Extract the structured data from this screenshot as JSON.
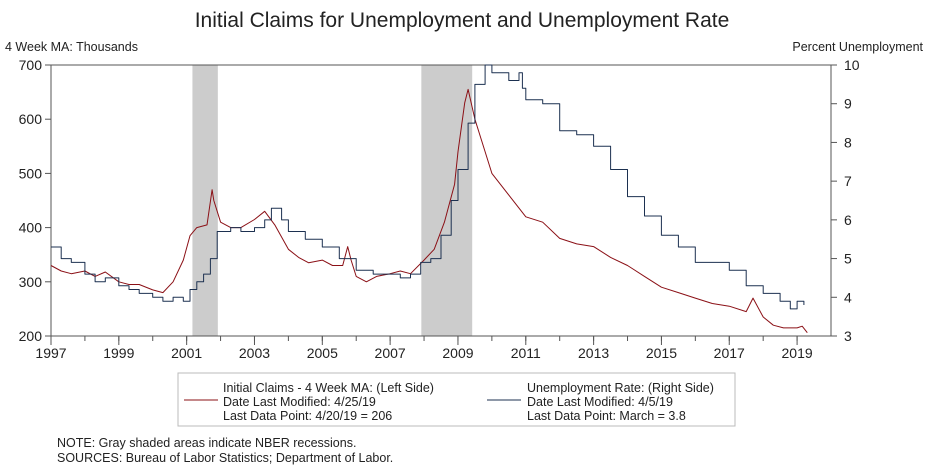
{
  "chart_data": {
    "type": "line",
    "title": "Initial Claims for Unemployment and Unemployment Rate",
    "left_axis_label": "4 Week MA: Thousands",
    "right_axis_label": "Percent Unemployment",
    "x_range": [
      1997.0,
      2020.0
    ],
    "left_ylim": [
      200,
      700
    ],
    "right_ylim": [
      3,
      10
    ],
    "x_ticks": [
      "1997",
      "1999",
      "2001",
      "2003",
      "2005",
      "2007",
      "2009",
      "2011",
      "2013",
      "2015",
      "2017",
      "2019"
    ],
    "left_ticks": [
      "200",
      "300",
      "400",
      "500",
      "600",
      "700"
    ],
    "right_ticks": [
      "3",
      "4",
      "5",
      "6",
      "7",
      "8",
      "9",
      "10"
    ],
    "recessions": [
      [
        2001.17,
        2001.92
      ],
      [
        2007.92,
        2009.42
      ]
    ],
    "series": [
      {
        "name": "Initial Claims - 4 Week MA: (Left Side)",
        "axis": "left",
        "color": "#8b1016",
        "x": [
          1997.0,
          1997.3,
          1997.6,
          1998.0,
          1998.3,
          1998.6,
          1999.0,
          1999.3,
          1999.6,
          2000.0,
          2000.3,
          2000.6,
          2000.9,
          2001.1,
          2001.3,
          2001.6,
          2001.75,
          2001.8,
          2002.0,
          2002.3,
          2002.6,
          2003.0,
          2003.3,
          2003.6,
          2004.0,
          2004.3,
          2004.6,
          2005.0,
          2005.3,
          2005.6,
          2005.75,
          2005.85,
          2006.0,
          2006.3,
          2006.6,
          2007.0,
          2007.3,
          2007.6,
          2008.0,
          2008.3,
          2008.6,
          2008.9,
          2009.0,
          2009.2,
          2009.3,
          2009.5,
          2009.7,
          2010.0,
          2010.5,
          2011.0,
          2011.5,
          2012.0,
          2012.5,
          2013.0,
          2013.5,
          2014.0,
          2014.5,
          2015.0,
          2015.5,
          2016.0,
          2016.5,
          2017.0,
          2017.5,
          2017.7,
          2018.0,
          2018.3,
          2018.6,
          2019.0,
          2019.15,
          2019.3
        ],
        "values": [
          330,
          320,
          315,
          320,
          310,
          318,
          300,
          295,
          295,
          285,
          280,
          300,
          340,
          385,
          400,
          405,
          470,
          450,
          410,
          400,
          400,
          415,
          430,
          405,
          360,
          345,
          335,
          340,
          330,
          330,
          365,
          340,
          310,
          300,
          310,
          315,
          320,
          315,
          340,
          360,
          410,
          480,
          540,
          630,
          655,
          600,
          560,
          500,
          460,
          420,
          410,
          380,
          370,
          365,
          345,
          330,
          310,
          290,
          280,
          270,
          260,
          255,
          245,
          270,
          235,
          220,
          215,
          215,
          218,
          206
        ]
      },
      {
        "name": "Unemployment Rate: (Right Side)",
        "axis": "right",
        "color": "#1c3050",
        "x": [
          1997.0,
          1997.3,
          1997.6,
          1998.0,
          1998.3,
          1998.6,
          1999.0,
          1999.3,
          1999.6,
          2000.0,
          2000.3,
          2000.6,
          2000.9,
          2001.1,
          2001.3,
          2001.5,
          2001.7,
          2001.9,
          2002.0,
          2002.3,
          2002.6,
          2003.0,
          2003.3,
          2003.5,
          2003.8,
          2004.0,
          2004.5,
          2005.0,
          2005.5,
          2006.0,
          2006.5,
          2007.0,
          2007.3,
          2007.6,
          2007.9,
          2008.2,
          2008.5,
          2008.8,
          2009.0,
          2009.3,
          2009.5,
          2009.8,
          2010.0,
          2010.5,
          2010.8,
          2010.9,
          2011.0,
          2011.5,
          2012.0,
          2012.5,
          2013.0,
          2013.5,
          2014.0,
          2014.5,
          2015.0,
          2015.5,
          2016.0,
          2016.5,
          2017.0,
          2017.5,
          2018.0,
          2018.5,
          2018.8,
          2019.0,
          2019.2
        ],
        "values": [
          5.3,
          5.0,
          4.9,
          4.6,
          4.4,
          4.5,
          4.3,
          4.2,
          4.1,
          4.0,
          3.9,
          4.0,
          3.9,
          4.2,
          4.4,
          4.6,
          5.0,
          5.7,
          5.7,
          5.8,
          5.7,
          5.8,
          6.0,
          6.3,
          6.0,
          5.7,
          5.5,
          5.3,
          5.0,
          4.7,
          4.6,
          4.6,
          4.5,
          4.6,
          4.9,
          5.0,
          5.6,
          6.5,
          7.3,
          8.5,
          9.5,
          10.0,
          9.8,
          9.6,
          9.8,
          9.4,
          9.1,
          9.0,
          8.3,
          8.2,
          7.9,
          7.3,
          6.6,
          6.1,
          5.6,
          5.3,
          4.9,
          4.9,
          4.7,
          4.3,
          4.1,
          3.9,
          3.7,
          3.9,
          3.8
        ]
      }
    ]
  },
  "legend": {
    "claims": {
      "name": "Initial Claims - 4 Week MA: (Left Side)",
      "modified": "Date Last Modified: 4/25/19",
      "last_point": "Last Data Point: 4/20/19 = 206"
    },
    "rate": {
      "name": "Unemployment Rate: (Right Side)",
      "modified": "Date Last Modified: 4/5/19",
      "last_point": "Last Data Point: March = 3.8"
    }
  },
  "notes": {
    "note": "NOTE: Gray shaded areas indicate NBER recessions.",
    "sources": "SOURCES: Bureau of Labor Statistics; Department of Labor."
  },
  "colors": {
    "recession": "#cccccc",
    "claims": "#8b1016",
    "rate": "#1c3050"
  }
}
